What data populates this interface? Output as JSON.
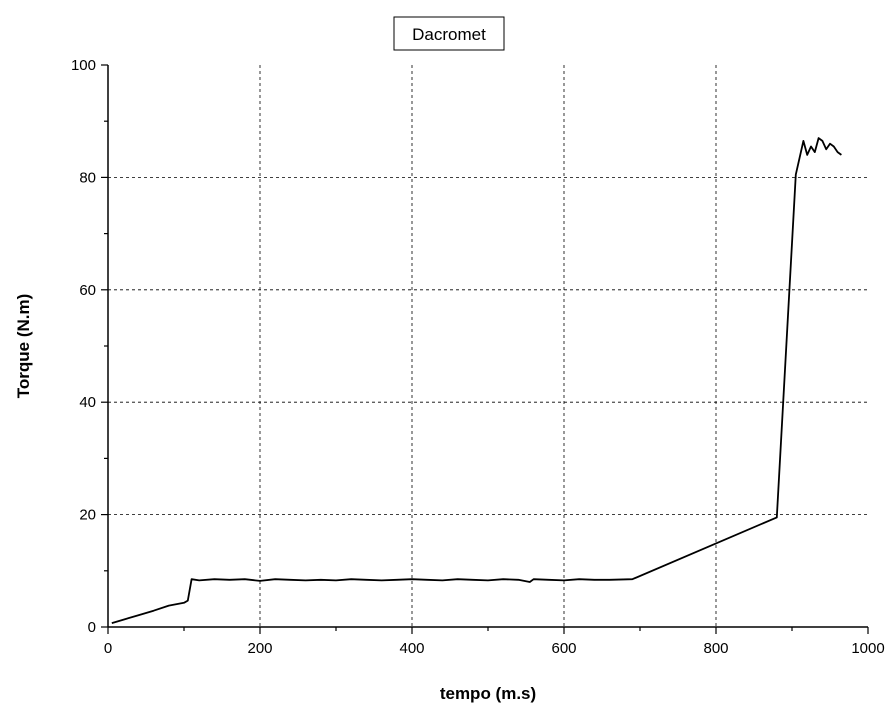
{
  "chart_data": {
    "type": "line",
    "title": "Dacromet",
    "xlabel": "tempo (m.s)",
    "ylabel": "Torque (N.m)",
    "xlim": [
      0,
      1000
    ],
    "ylim": [
      0,
      100
    ],
    "xticks": [
      0,
      200,
      400,
      600,
      800,
      1000
    ],
    "yticks": [
      0,
      20,
      40,
      60,
      80,
      100
    ],
    "grid": true,
    "grid_style": "dashed",
    "line_color": "#000000",
    "series": [
      {
        "x": [
          5,
          20,
          40,
          60,
          80,
          100,
          105,
          110,
          120,
          140,
          160,
          180,
          200,
          220,
          240,
          260,
          280,
          300,
          320,
          340,
          360,
          380,
          400,
          420,
          440,
          460,
          480,
          500,
          520,
          540,
          555,
          560,
          580,
          600,
          620,
          640,
          660,
          690,
          880,
          905,
          915,
          920,
          925,
          930,
          935,
          940,
          945,
          950,
          955,
          960,
          965
        ],
        "y": [
          0.7,
          1.3,
          2.1,
          2.9,
          3.8,
          4.3,
          4.7,
          8.5,
          8.3,
          8.5,
          8.4,
          8.5,
          8.2,
          8.5,
          8.4,
          8.3,
          8.4,
          8.3,
          8.5,
          8.4,
          8.3,
          8.4,
          8.5,
          8.4,
          8.3,
          8.5,
          8.4,
          8.3,
          8.5,
          8.4,
          8.0,
          8.5,
          8.4,
          8.3,
          8.5,
          8.4,
          8.4,
          8.5,
          19.5,
          80.5,
          86.5,
          84.0,
          85.5,
          84.5,
          87.0,
          86.5,
          85.0,
          86.0,
          85.5,
          84.5,
          84.0
        ]
      }
    ]
  }
}
